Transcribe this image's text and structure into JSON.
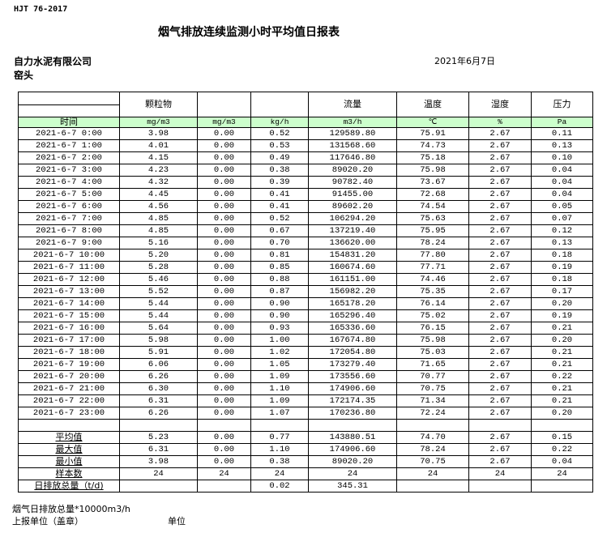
{
  "header": {
    "standard": "HJT 76-2017",
    "title": "烟气排放连续监测小时平均值日报表",
    "company": "自力水泥有限公司",
    "date": "2021年6月7日",
    "site": "窑头"
  },
  "columns": {
    "names": [
      "",
      "颗粒物",
      "",
      "",
      "流量",
      "温度",
      "湿度",
      "压力"
    ],
    "units": [
      "时间",
      "mg/m3",
      "mg/m3",
      "kg/h",
      "m3/h",
      "℃",
      "%",
      "Pa"
    ]
  },
  "rows": [
    [
      "2021-6-7 0:00",
      "3.98",
      "0.00",
      "0.52",
      "129589.80",
      "75.91",
      "2.67",
      "0.11"
    ],
    [
      "2021-6-7 1:00",
      "4.01",
      "0.00",
      "0.53",
      "131568.60",
      "74.73",
      "2.67",
      "0.13"
    ],
    [
      "2021-6-7 2:00",
      "4.15",
      "0.00",
      "0.49",
      "117646.80",
      "75.18",
      "2.67",
      "0.10"
    ],
    [
      "2021-6-7 3:00",
      "4.23",
      "0.00",
      "0.38",
      "89020.20",
      "75.98",
      "2.67",
      "0.04"
    ],
    [
      "2021-6-7 4:00",
      "4.32",
      "0.00",
      "0.39",
      "90782.40",
      "73.67",
      "2.67",
      "0.04"
    ],
    [
      "2021-6-7 5:00",
      "4.45",
      "0.00",
      "0.41",
      "91455.00",
      "72.68",
      "2.67",
      "0.04"
    ],
    [
      "2021-6-7 6:00",
      "4.56",
      "0.00",
      "0.41",
      "89602.20",
      "74.54",
      "2.67",
      "0.05"
    ],
    [
      "2021-6-7 7:00",
      "4.85",
      "0.00",
      "0.52",
      "106294.20",
      "75.63",
      "2.67",
      "0.07"
    ],
    [
      "2021-6-7 8:00",
      "4.85",
      "0.00",
      "0.67",
      "137219.40",
      "75.95",
      "2.67",
      "0.12"
    ],
    [
      "2021-6-7 9:00",
      "5.16",
      "0.00",
      "0.70",
      "136620.00",
      "78.24",
      "2.67",
      "0.13"
    ],
    [
      "2021-6-7 10:00",
      "5.20",
      "0.00",
      "0.81",
      "154831.20",
      "77.80",
      "2.67",
      "0.18"
    ],
    [
      "2021-6-7 11:00",
      "5.28",
      "0.00",
      "0.85",
      "160674.60",
      "77.71",
      "2.67",
      "0.19"
    ],
    [
      "2021-6-7 12:00",
      "5.46",
      "0.00",
      "0.88",
      "161151.00",
      "74.46",
      "2.67",
      "0.18"
    ],
    [
      "2021-6-7 13:00",
      "5.52",
      "0.00",
      "0.87",
      "156982.20",
      "75.35",
      "2.67",
      "0.17"
    ],
    [
      "2021-6-7 14:00",
      "5.44",
      "0.00",
      "0.90",
      "165178.20",
      "76.14",
      "2.67",
      "0.20"
    ],
    [
      "2021-6-7 15:00",
      "5.44",
      "0.00",
      "0.90",
      "165296.40",
      "75.02",
      "2.67",
      "0.19"
    ],
    [
      "2021-6-7 16:00",
      "5.64",
      "0.00",
      "0.93",
      "165336.60",
      "76.15",
      "2.67",
      "0.21"
    ],
    [
      "2021-6-7 17:00",
      "5.98",
      "0.00",
      "1.00",
      "167674.80",
      "75.98",
      "2.67",
      "0.20"
    ],
    [
      "2021-6-7 18:00",
      "5.91",
      "0.00",
      "1.02",
      "172054.80",
      "75.03",
      "2.67",
      "0.21"
    ],
    [
      "2021-6-7 19:00",
      "6.06",
      "0.00",
      "1.05",
      "173279.40",
      "71.65",
      "2.67",
      "0.21"
    ],
    [
      "2021-6-7 20:00",
      "6.26",
      "0.00",
      "1.09",
      "173556.60",
      "70.77",
      "2.67",
      "0.22"
    ],
    [
      "2021-6-7 21:00",
      "6.30",
      "0.00",
      "1.10",
      "174906.60",
      "70.75",
      "2.67",
      "0.21"
    ],
    [
      "2021-6-7 22:00",
      "6.31",
      "0.00",
      "1.09",
      "172174.35",
      "71.34",
      "2.67",
      "0.21"
    ],
    [
      "2021-6-7 23:00",
      "6.26",
      "0.00",
      "1.07",
      "170236.80",
      "72.24",
      "2.67",
      "0.20"
    ]
  ],
  "summary": [
    [
      "平均值",
      "5.23",
      "0.00",
      "0.77",
      "143880.51",
      "74.70",
      "2.67",
      "0.15"
    ],
    [
      "最大值",
      "6.31",
      "0.00",
      "1.10",
      "174906.60",
      "78.24",
      "2.67",
      "0.22"
    ],
    [
      "最小值",
      "3.98",
      "0.00",
      "0.38",
      "89020.20",
      "70.75",
      "2.67",
      "0.04"
    ],
    [
      "样本数",
      "24",
      "24",
      "24",
      "24",
      "24",
      "24",
      "24"
    ],
    [
      "日排放总量（t/d)",
      "",
      "",
      "0.02",
      "345.31",
      "",
      "",
      ""
    ]
  ],
  "footer": {
    "note": "烟气日排放总量*10000m3/h",
    "reporter": "上报单位（盖章）",
    "unit": "单位"
  }
}
